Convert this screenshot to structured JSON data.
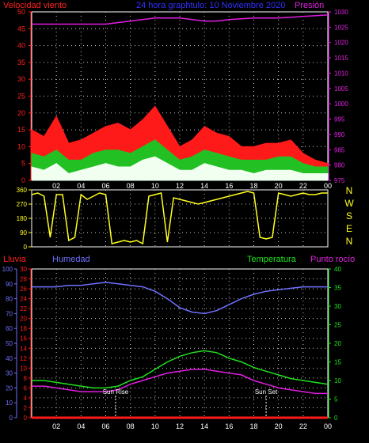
{
  "header": {
    "wind_title": "Velocidad viento",
    "center_title": "24 hora graphtulo: 10 Noviembre 2020",
    "pressure_title": "Presión"
  },
  "colors": {
    "wind_axis": "#ff2020",
    "pressure": "#e020e0",
    "title_blue": "#3030ff",
    "wind_red": "#ff1a1a",
    "wind_green": "#22c022",
    "wind_white": "#f0fff0",
    "direction": "#ffff20",
    "humidity": "#7070ff",
    "temperature": "#20e020",
    "dewpoint": "#e020e0",
    "rain": "#ff1a1a",
    "grid": "#c8c8c8"
  },
  "direction_labels": [
    "N",
    "W",
    "S",
    "E",
    "N"
  ],
  "bottom_legend": {
    "rain": "Lluvia",
    "humidity": "Humedad",
    "temperature": "Temperatura",
    "dewpoint": "Punto rocío"
  },
  "annotations": {
    "sunrise": "Sun Rise",
    "sunset": "Sun Set"
  },
  "chart_data": [
    {
      "type": "line",
      "id": "wind_pressure",
      "x_ticks": [
        "02",
        "04",
        "06",
        "08",
        "10",
        "12",
        "14",
        "16",
        "18",
        "20",
        "22",
        "00"
      ],
      "ylabel_left": "Velocidad viento",
      "ylabel_right": "Presión",
      "ylim_left": [
        0,
        50
      ],
      "ylim_right": [
        975,
        1030
      ],
      "y_ticks_left": [
        0,
        5,
        10,
        15,
        20,
        25,
        30,
        35,
        40,
        45,
        50
      ],
      "y_ticks_right": [
        975,
        980,
        985,
        990,
        995,
        1000,
        1005,
        1010,
        1015,
        1020,
        1025,
        1030
      ],
      "grid": true,
      "series": [
        {
          "name": "Presión",
          "axis": "right",
          "x": [
            0,
            2,
            4,
            6,
            8,
            10,
            12,
            14,
            15,
            16,
            18,
            20,
            22,
            24
          ],
          "y": [
            1026,
            1026,
            1026,
            1026,
            1027,
            1028,
            1028,
            1027,
            1027,
            1027.5,
            1028,
            1028,
            1028.5,
            1029
          ]
        },
        {
          "name": "gust",
          "axis": "left",
          "x": [
            0,
            1,
            2,
            3,
            4,
            5,
            6,
            7,
            8,
            9,
            10,
            11,
            12,
            13,
            14,
            15,
            16,
            17,
            18,
            19,
            20,
            21,
            22,
            23,
            24
          ],
          "y": [
            15,
            13,
            19,
            11,
            12,
            14,
            16,
            17,
            15,
            18,
            22,
            16,
            10,
            12,
            16,
            14,
            13,
            10,
            10,
            11,
            11,
            12,
            8,
            6,
            5
          ]
        },
        {
          "name": "average",
          "axis": "left",
          "x": [
            0,
            1,
            2,
            3,
            4,
            5,
            6,
            7,
            8,
            9,
            10,
            11,
            12,
            13,
            14,
            15,
            16,
            17,
            18,
            19,
            20,
            21,
            22,
            23,
            24
          ],
          "y": [
            8,
            7,
            9,
            6,
            6,
            8,
            9,
            9,
            8,
            10,
            12,
            9,
            6,
            7,
            9,
            8,
            7,
            6,
            6,
            6,
            7,
            7,
            5,
            4,
            4
          ]
        },
        {
          "name": "lull",
          "axis": "left",
          "x": [
            0,
            1,
            2,
            3,
            4,
            5,
            6,
            7,
            8,
            9,
            10,
            11,
            12,
            13,
            14,
            15,
            16,
            17,
            18,
            19,
            20,
            21,
            22,
            23,
            24
          ],
          "y": [
            4,
            3,
            5,
            2,
            3,
            4,
            5,
            4,
            4,
            6,
            7,
            5,
            3,
            3,
            5,
            4,
            3,
            3,
            2,
            3,
            3,
            3,
            2,
            2,
            2
          ]
        }
      ]
    },
    {
      "type": "line",
      "id": "wind_direction",
      "ylim": [
        0,
        360
      ],
      "y_ticks": [
        0,
        90,
        180,
        270,
        360
      ],
      "grid": true,
      "series": [
        {
          "name": "direction",
          "x": [
            0,
            0.5,
            1,
            1.5,
            2,
            2.5,
            3,
            3.5,
            4,
            4.5,
            5,
            5.5,
            6,
            6.5,
            7,
            7.5,
            8,
            8.5,
            9,
            9.5,
            10,
            10.5,
            11,
            11.5,
            12,
            12.5,
            13,
            13.5,
            14,
            14.5,
            15,
            15.5,
            16,
            16.5,
            17,
            17.5,
            18,
            18.5,
            19,
            19.5,
            20,
            20.5,
            21,
            21.5,
            22,
            22.5,
            23,
            23.5,
            24
          ],
          "y": [
            330,
            340,
            320,
            60,
            330,
            330,
            40,
            60,
            330,
            300,
            320,
            340,
            330,
            20,
            30,
            40,
            30,
            40,
            20,
            320,
            330,
            340,
            30,
            310,
            300,
            290,
            280,
            270,
            280,
            290,
            300,
            310,
            320,
            330,
            340,
            350,
            340,
            60,
            50,
            60,
            340,
            330,
            320,
            330,
            340,
            330,
            330,
            340,
            340
          ]
        }
      ]
    },
    {
      "type": "line",
      "id": "humidity_temperature",
      "ylim_humidity": [
        0,
        100
      ],
      "ylim_rain": [
        0,
        30
      ],
      "ylim_temperature": [
        0,
        40
      ],
      "y_ticks_humidity": [
        0,
        10,
        20,
        30,
        40,
        50,
        60,
        70,
        80,
        90,
        100
      ],
      "y_ticks_rain": [
        0,
        2,
        4,
        6,
        8,
        10,
        12,
        14,
        16,
        18,
        20,
        22,
        24,
        26,
        28,
        30
      ],
      "y_ticks_temperature": [
        0,
        5,
        10,
        15,
        20,
        25,
        30,
        35,
        40
      ],
      "x_ticks": [
        "02",
        "04",
        "06",
        "08",
        "10",
        "12",
        "14",
        "16",
        "18",
        "20",
        "22",
        "00"
      ],
      "grid": true,
      "series": [
        {
          "name": "Humedad",
          "axis": "humidity",
          "x": [
            0,
            1,
            2,
            3,
            4,
            5,
            6,
            7,
            8,
            9,
            10,
            11,
            12,
            13,
            14,
            15,
            16,
            17,
            18,
            19,
            20,
            21,
            22,
            23,
            24
          ],
          "y": [
            88,
            88,
            88,
            89,
            89,
            90,
            91,
            90,
            89,
            88,
            85,
            80,
            74,
            71,
            70,
            72,
            76,
            80,
            83,
            85,
            86,
            87,
            88,
            88,
            88
          ]
        },
        {
          "name": "Temperatura",
          "axis": "temperature",
          "x": [
            0,
            1,
            2,
            3,
            4,
            5,
            6,
            7,
            8,
            9,
            10,
            11,
            12,
            13,
            14,
            15,
            16,
            17,
            18,
            19,
            20,
            21,
            22,
            23,
            24
          ],
          "y": [
            10,
            10,
            9.5,
            9,
            8.5,
            8,
            8,
            8.5,
            10,
            11,
            13,
            15,
            16.5,
            17.5,
            18,
            17.5,
            16,
            15,
            13.5,
            12.5,
            11.5,
            10.5,
            10,
            9.5,
            9
          ]
        },
        {
          "name": "Punto rocío",
          "axis": "temperature",
          "x": [
            0,
            1,
            2,
            3,
            4,
            5,
            6,
            7,
            8,
            9,
            10,
            11,
            12,
            13,
            14,
            15,
            16,
            17,
            18,
            19,
            20,
            21,
            22,
            23,
            24
          ],
          "y": [
            8.5,
            8.5,
            8,
            7.5,
            7,
            7,
            7,
            7.5,
            9,
            10,
            11,
            12,
            12.5,
            13,
            13,
            12.5,
            12,
            11.5,
            10,
            9,
            8,
            7.5,
            7,
            6.5,
            6.5
          ]
        },
        {
          "name": "Lluvia",
          "axis": "rain",
          "x": [
            0,
            24
          ],
          "y": [
            0,
            0
          ]
        }
      ],
      "sunrise_hour": 6.8,
      "sunset_hour": 19
    }
  ]
}
